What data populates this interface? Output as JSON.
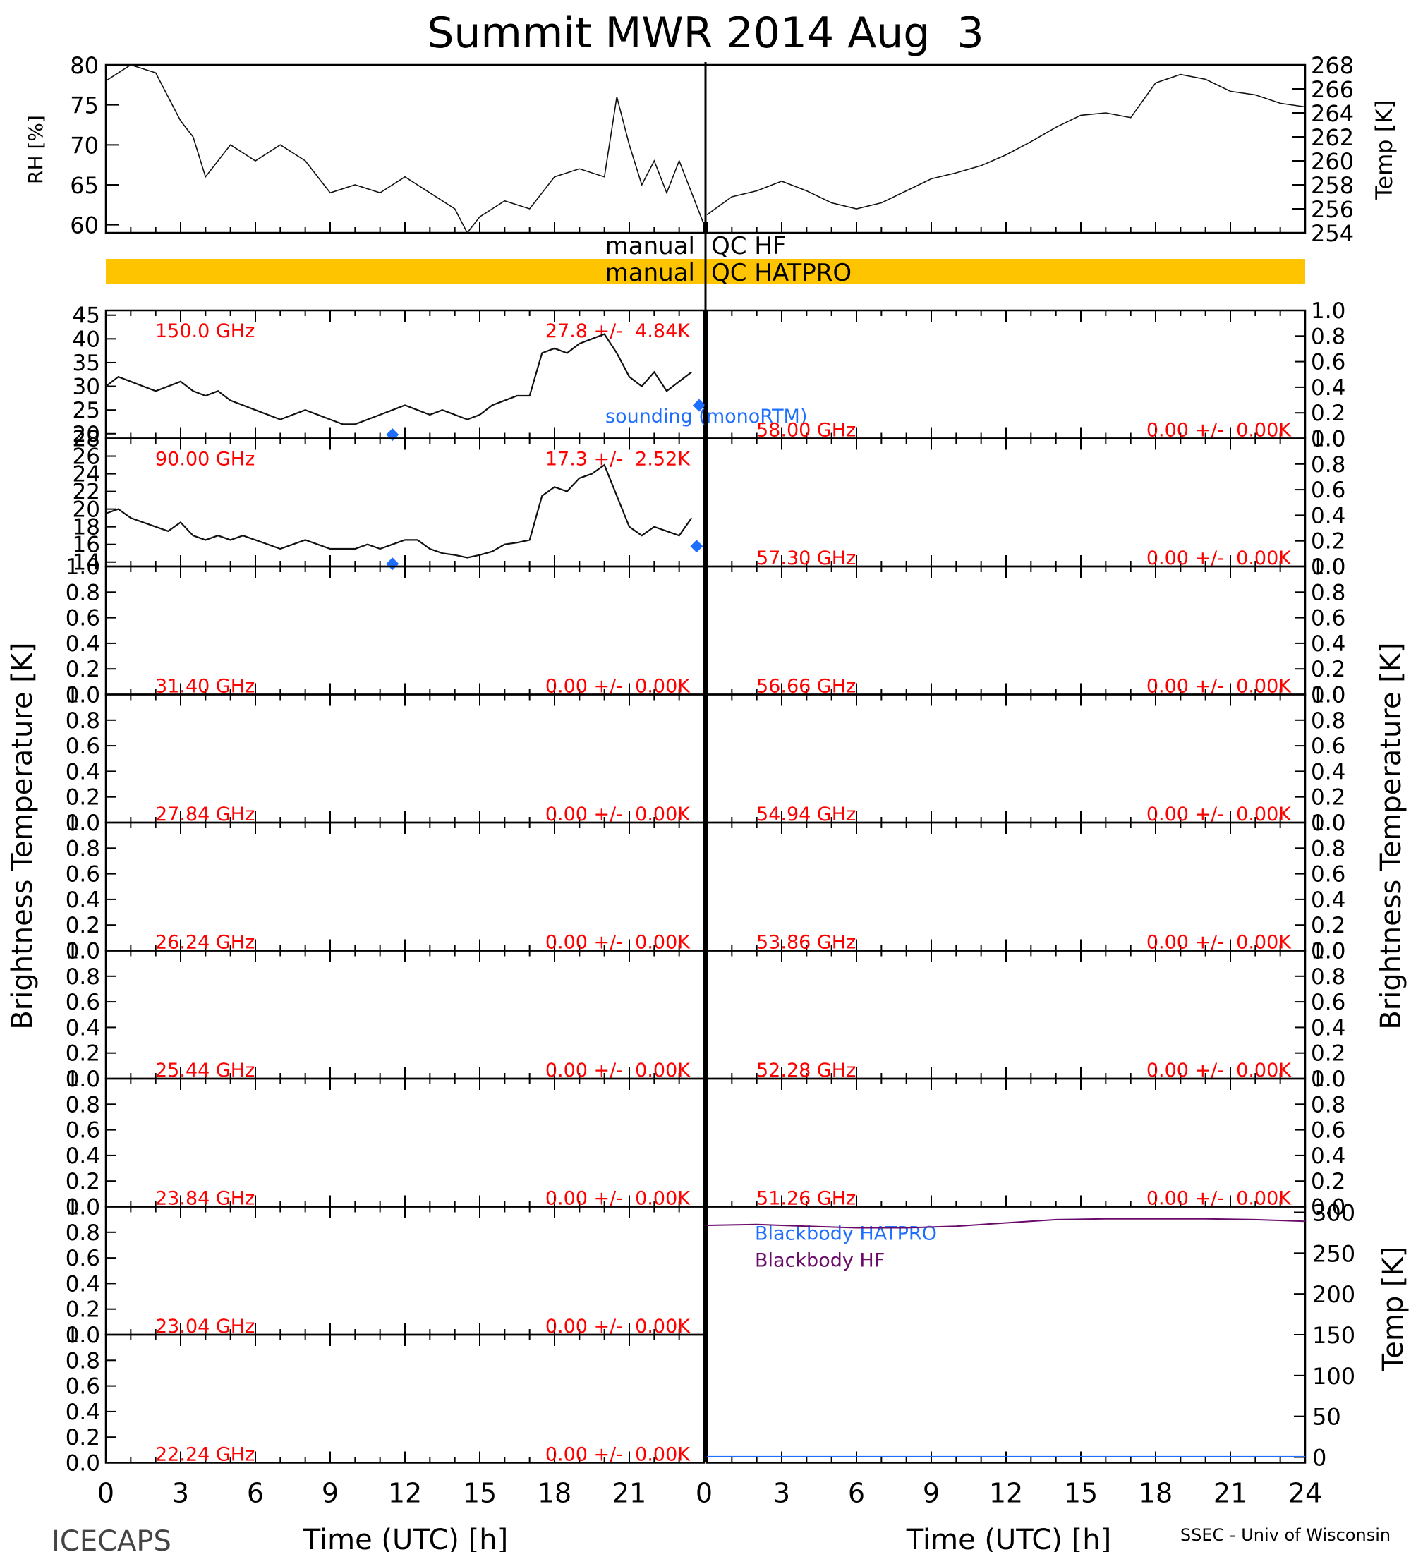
{
  "title": "Summit MWR 2014 Aug  3",
  "footer_left": "ICECAPS",
  "footer_right": "SSEC - Univ of Wisconsin",
  "colors": {
    "red": "#ff0000",
    "blue": "#1f6fff",
    "purple": "#6a0a6a",
    "orange": "#ffc400",
    "black": "#000000"
  },
  "chart_data": [
    {
      "id": "rh_temp",
      "type": "line",
      "ylabel_left": "RH [%]",
      "ylabel_right": "Temp [K]",
      "left_axis": {
        "ylim": [
          59,
          80
        ],
        "ticks": [
          "60",
          "65",
          "70",
          "75",
          "80"
        ]
      },
      "right_axis": {
        "ylim": [
          254,
          268
        ],
        "ticks": [
          "254",
          "256",
          "258",
          "260",
          "262",
          "264",
          "266",
          "268"
        ]
      },
      "series": [
        {
          "axis": "left",
          "panel": "left",
          "x_range": [
            0,
            24
          ],
          "x": [
            0,
            1,
            2,
            2.5,
            3,
            3.5,
            4,
            5,
            6,
            7,
            8,
            9,
            10,
            11,
            12,
            13,
            14,
            14.5,
            15,
            16,
            17,
            18,
            19,
            20,
            20.5,
            21,
            21.5,
            22,
            22.5,
            23,
            24
          ],
          "values": [
            78,
            80,
            79,
            76,
            73,
            71,
            66,
            70,
            68,
            70,
            68,
            64,
            65,
            64,
            66,
            64,
            62,
            59,
            61,
            63,
            62,
            66,
            67,
            66,
            76,
            70,
            65,
            68,
            64,
            68,
            60
          ]
        },
        {
          "axis": "right",
          "panel": "right",
          "x_range": [
            0,
            24
          ],
          "x": [
            0,
            1,
            2,
            3,
            4,
            5,
            6,
            7,
            8,
            9,
            10,
            11,
            12,
            13,
            14,
            15,
            16,
            17,
            18,
            19,
            20,
            21,
            22,
            23,
            24
          ],
          "values": [
            255.5,
            257,
            257.5,
            258.3,
            257.5,
            256.5,
            256,
            256.5,
            257.5,
            258.5,
            259,
            259.6,
            260.5,
            261.6,
            262.8,
            263.8,
            264,
            263.6,
            266.5,
            267.2,
            266.8,
            265.8,
            265.5,
            264.8,
            264.5
          ]
        }
      ]
    },
    {
      "id": "qc_bars",
      "type": "bar",
      "rows": [
        {
          "label_left": "manual",
          "label_right": "QC HF",
          "filled": false
        },
        {
          "label_left": "manual",
          "label_right": "QC HATPRO",
          "filled": true
        }
      ]
    },
    {
      "id": "tb_channels",
      "type": "line",
      "ylabel": "Brightness Temperature [K]",
      "xlabel": "Time (UTC) [h]",
      "x_ticks_left": [
        "0",
        "3",
        "6",
        "9",
        "12",
        "15",
        "18",
        "21",
        "0"
      ],
      "x_ticks_right": [
        "3",
        "6",
        "9",
        "12",
        "15",
        "18",
        "21",
        "24"
      ],
      "legend_sounding": "sounding (monoRTM)",
      "empty_ticks": [
        "0.0",
        "0.2",
        "0.4",
        "0.6",
        "0.8",
        "1.0"
      ],
      "left_panels": [
        {
          "freq": "150.0 GHz",
          "stat": "27.8 +/-  4.84K",
          "ylim": [
            19,
            46
          ],
          "ticks": [
            "20",
            "25",
            "30",
            "35",
            "40",
            "45"
          ],
          "x": [
            0,
            0.5,
            1,
            1.5,
            2,
            2.5,
            3,
            3.5,
            4,
            4.5,
            5,
            5.5,
            6,
            6.5,
            7,
            7.5,
            8,
            8.5,
            9,
            9.5,
            10,
            10.5,
            11,
            11.5,
            12,
            12.5,
            13,
            13.5,
            14,
            14.5,
            15,
            15.5,
            16,
            16.5,
            17,
            17.5,
            18,
            18.5,
            19,
            19.5,
            20,
            20.5,
            21,
            21.5,
            22,
            22.5,
            23,
            23.5
          ],
          "values": [
            30,
            32,
            31,
            30,
            29,
            30,
            31,
            29,
            28,
            29,
            27,
            26,
            25,
            24,
            23,
            24,
            25,
            24,
            23,
            22,
            22,
            23,
            24,
            25,
            26,
            25,
            24,
            25,
            24,
            23,
            24,
            26,
            27,
            28,
            28,
            37,
            38,
            37,
            39,
            40,
            41,
            37,
            32,
            30,
            33,
            29,
            31,
            33
          ],
          "soundings": {
            "x": [
              11.5,
              23.8
            ],
            "values": [
              19.8,
              26
            ]
          }
        },
        {
          "freq": "90.00 GHz",
          "stat": "17.3 +/-  2.52K",
          "ylim": [
            13.5,
            28
          ],
          "ticks": [
            "14",
            "16",
            "18",
            "20",
            "22",
            "24",
            "26",
            "28"
          ],
          "x": [
            0,
            0.5,
            1,
            1.5,
            2,
            2.5,
            3,
            3.5,
            4,
            4.5,
            5,
            5.5,
            6,
            6.5,
            7,
            7.5,
            8,
            8.5,
            9,
            9.5,
            10,
            10.5,
            11,
            11.5,
            12,
            12.5,
            13,
            13.5,
            14,
            14.5,
            15,
            15.5,
            16,
            16.5,
            17,
            17.5,
            18,
            18.5,
            19,
            19.5,
            20,
            20.5,
            21,
            21.5,
            22,
            22.5,
            23,
            23.5
          ],
          "values": [
            19.5,
            20,
            19,
            18.5,
            18,
            17.5,
            18.5,
            17,
            16.5,
            17,
            16.5,
            17,
            16.5,
            16,
            15.5,
            16,
            16.5,
            16,
            15.5,
            15.5,
            15.5,
            16,
            15.5,
            16,
            16.5,
            16.5,
            15.5,
            15,
            14.8,
            14.5,
            14.8,
            15.2,
            16,
            16.2,
            16.5,
            21.5,
            22.5,
            22,
            23.5,
            24,
            25,
            21.5,
            18,
            17,
            18,
            17.5,
            17,
            19
          ],
          "soundings": {
            "x": [
              11.5,
              23.7
            ],
            "values": [
              13.8,
              15.8
            ]
          }
        },
        {
          "freq": "31.40 GHz",
          "stat": "0.00 +/-  0.00K"
        },
        {
          "freq": "27.84 GHz",
          "stat": "0.00 +/-  0.00K"
        },
        {
          "freq": "26.24 GHz",
          "stat": "0.00 +/-  0.00K"
        },
        {
          "freq": "25.44 GHz",
          "stat": "0.00 +/-  0.00K"
        },
        {
          "freq": "23.84 GHz",
          "stat": "0.00 +/-  0.00K"
        },
        {
          "freq": "23.04 GHz",
          "stat": "0.00 +/-  0.00K"
        },
        {
          "freq": "22.24 GHz",
          "stat": "0.00 +/-  0.00K"
        }
      ],
      "right_panels": [
        {
          "freq": "58.00 GHz",
          "stat": "0.00 +/-  0.00K"
        },
        {
          "freq": "57.30 GHz",
          "stat": "0.00 +/-  0.00K"
        },
        {
          "freq": "56.66 GHz",
          "stat": "0.00 +/-  0.00K"
        },
        {
          "freq": "54.94 GHz",
          "stat": "0.00 +/-  0.00K"
        },
        {
          "freq": "53.86 GHz",
          "stat": "0.00 +/-  0.00K"
        },
        {
          "freq": "52.28 GHz",
          "stat": "0.00 +/-  0.00K"
        },
        {
          "freq": "51.26 GHz",
          "stat": "0.00 +/-  0.00K"
        }
      ]
    },
    {
      "id": "blackbody",
      "type": "line",
      "ylabel_right": "Temp [K]",
      "ylim": [
        0,
        300
      ],
      "ticks": [
        "0",
        "50",
        "100",
        "150",
        "200",
        "250",
        "300"
      ],
      "series": [
        {
          "name": "Blackbody HATPRO",
          "color": "#1f6fff",
          "x": [
            0,
            24
          ],
          "values": [
            0.5,
            0.5
          ]
        },
        {
          "name": "Blackbody HF",
          "color": "#6a0a6a",
          "x": [
            0,
            2,
            4,
            6,
            8,
            10,
            12,
            14,
            16,
            18,
            20,
            22,
            24
          ],
          "values": [
            284,
            285,
            283,
            281,
            281,
            283,
            287,
            291,
            292,
            292,
            292,
            291,
            289
          ]
        }
      ]
    }
  ]
}
